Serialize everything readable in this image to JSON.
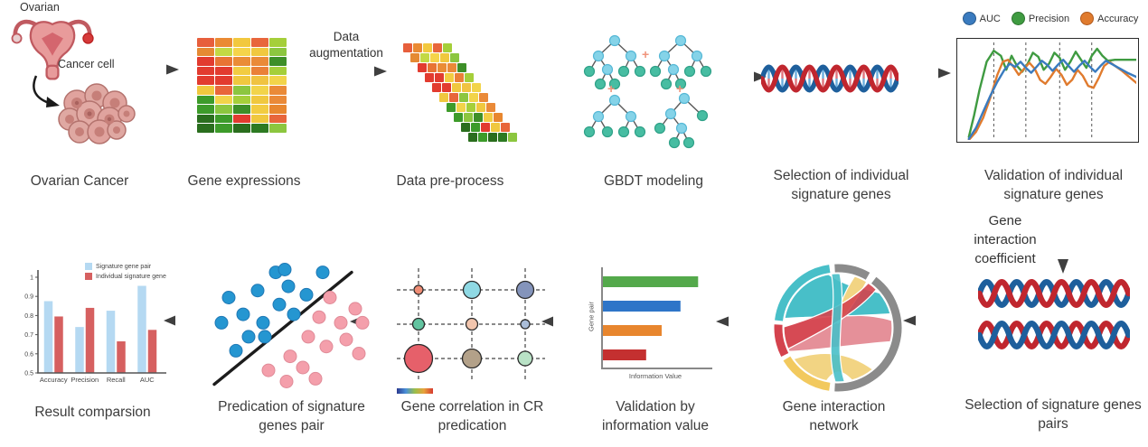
{
  "palette": {
    "arrow": "#3f3f3f",
    "caption_text": "#3c3c3c",
    "dna_blue": "#1e5f9c",
    "dna_red": "#c0262e",
    "tree_node_blue": "#85d3e8",
    "tree_leaf_teal": "#47bda2",
    "plus_salmon": "#f0947c",
    "chord_teal": "#48bfc8",
    "chord_pink": "#e59099",
    "chord_red": "#d4424d",
    "chord_yellow": "#f2d483",
    "chord_gray": "#8b8b8b"
  },
  "icons": [
    "uterus-icon",
    "cancer-cells-icon",
    "right-arrow-icon",
    "left-arrow-icon",
    "down-arrow-icon",
    "curved-arrow-icon",
    "gbdt-tree-icon",
    "plus-icon",
    "dna-helix-icon",
    "chord-diagram-icon",
    "colorbar-icon"
  ],
  "labels": {
    "ovarian": "Ovarian",
    "cancer_cell": "Cancer cell",
    "data_augmentation": "Data augmentation",
    "gene_interaction_coefficient": "Gene interaction coefficient"
  },
  "captions": {
    "ovarian_cancer": "Ovarian Cancer",
    "gene_expressions": "Gene expressions",
    "data_preprocess": "Data pre-process",
    "gbdt_modeling": "GBDT modeling",
    "selection_individual": "Selection of individual signature genes",
    "validation_individual": "Validation of individual signature genes",
    "selection_pairs": "Selection of signature genes pairs",
    "gene_interaction_network": "Gene interaction network",
    "validation_information": "Validation by information value",
    "gene_correlation": "Gene correlation in CR predication",
    "prediction_pairs": "Predication of signature genes pair",
    "result_comparison": "Result comparsion"
  },
  "gbdt": {
    "plus": "+"
  },
  "gene_expression_heatmap": {
    "grid": [
      [
        "#e75f3c",
        "#ea8a33",
        "#f2c83e",
        "#e8663b",
        "#a5cf3a"
      ],
      [
        "#e58a33",
        "#c3d944",
        "#f5d44a",
        "#f0c83f",
        "#8cc63f"
      ],
      [
        "#e23b2f",
        "#e87434",
        "#ea8c36",
        "#ea8a38",
        "#3d8f28"
      ],
      [
        "#e23b2f",
        "#e23b2f",
        "#f2cc42",
        "#ea8038",
        "#a5cf3a"
      ],
      [
        "#e23b2f",
        "#e23b2f",
        "#f0c83f",
        "#f0c341",
        "#f2d44a"
      ],
      [
        "#f0c83f",
        "#e8663b",
        "#8cc63f",
        "#f2d44a",
        "#ea8a38"
      ],
      [
        "#3d9b2a",
        "#f2d44a",
        "#a5cf3a",
        "#f0c83f",
        "#ea8a38"
      ],
      [
        "#3d9b2a",
        "#8cc63f",
        "#3d8f28",
        "#f2cc42",
        "#e8872f"
      ],
      [
        "#2a6e1e",
        "#3d9b2a",
        "#e23b2f",
        "#f0c83f",
        "#e8663b"
      ],
      [
        "#2a6e1e",
        "#3d9b2a",
        "#2a6e1e",
        "#2d7a22",
        "#8cc63f"
      ]
    ]
  },
  "chart_data": {
    "validation": {
      "type": "line",
      "legend": [
        {
          "label": "AUC",
          "color": "#3a7bbf",
          "border": "#2a5a8c"
        },
        {
          "label": "Precision",
          "color": "#3f9b41",
          "border": "#2e7530"
        },
        {
          "label": "Accuracy",
          "color": "#e07b2e",
          "border": "#b05a1e"
        }
      ],
      "vlines_pct": [
        20,
        38,
        57,
        75
      ],
      "series": [
        {
          "name": "Precision",
          "color": "#3f9b41",
          "points": [
            [
              6,
              97
            ],
            [
              9,
              75
            ],
            [
              12,
              50
            ],
            [
              16,
              22
            ],
            [
              20,
              11
            ],
            [
              24,
              16
            ],
            [
              27,
              30
            ],
            [
              30,
              16
            ],
            [
              33,
              26
            ],
            [
              36,
              32
            ],
            [
              39,
              24
            ],
            [
              42,
              13
            ],
            [
              45,
              17
            ],
            [
              48,
              30
            ],
            [
              51,
              24
            ],
            [
              54,
              13
            ],
            [
              57,
              18
            ],
            [
              60,
              30
            ],
            [
              63,
              22
            ],
            [
              66,
              12
            ],
            [
              69,
              20
            ],
            [
              72,
              28
            ],
            [
              75,
              16
            ],
            [
              78,
              9
            ],
            [
              81,
              16
            ],
            [
              84,
              21
            ],
            [
              88,
              20
            ],
            [
              93,
              20
            ],
            [
              100,
              20
            ]
          ]
        },
        {
          "name": "Accuracy",
          "color": "#e07b2e",
          "points": [
            [
              6,
              100
            ],
            [
              10,
              92
            ],
            [
              14,
              78
            ],
            [
              18,
              58
            ],
            [
              22,
              35
            ],
            [
              25,
              22
            ],
            [
              28,
              20
            ],
            [
              31,
              27
            ],
            [
              34,
              35
            ],
            [
              37,
              29
            ],
            [
              40,
              23
            ],
            [
              43,
              29
            ],
            [
              46,
              40
            ],
            [
              49,
              44
            ],
            [
              52,
              37
            ],
            [
              55,
              29
            ],
            [
              58,
              35
            ],
            [
              61,
              45
            ],
            [
              64,
              40
            ],
            [
              67,
              30
            ],
            [
              70,
              36
            ],
            [
              73,
              46
            ],
            [
              76,
              48
            ],
            [
              79,
              38
            ],
            [
              82,
              26
            ],
            [
              85,
              22
            ],
            [
              88,
              26
            ],
            [
              92,
              31
            ],
            [
              100,
              43
            ]
          ]
        },
        {
          "name": "AUC",
          "color": "#3a7bbf",
          "points": [
            [
              6,
              99
            ],
            [
              10,
              88
            ],
            [
              14,
              72
            ],
            [
              18,
              56
            ],
            [
              22,
              42
            ],
            [
              26,
              30
            ],
            [
              29,
              24
            ],
            [
              32,
              27
            ],
            [
              35,
              22
            ],
            [
              38,
              28
            ],
            [
              41,
              33
            ],
            [
              44,
              27
            ],
            [
              47,
              21
            ],
            [
              50,
              25
            ],
            [
              53,
              31
            ],
            [
              56,
              25
            ],
            [
              59,
              20
            ],
            [
              62,
              26
            ],
            [
              65,
              32
            ],
            [
              68,
              26
            ],
            [
              71,
              21
            ],
            [
              74,
              27
            ],
            [
              77,
              32
            ],
            [
              80,
              26
            ],
            [
              83,
              21
            ],
            [
              86,
              24
            ],
            [
              90,
              28
            ],
            [
              95,
              33
            ],
            [
              100,
              37
            ]
          ]
        }
      ]
    },
    "information_value": {
      "type": "bar",
      "orientation": "horizontal",
      "xlabel": "Information Value",
      "ylabel": "Gene pair",
      "bars": [
        {
          "color": "#54a94b",
          "value": 0.92
        },
        {
          "color": "#2e75c8",
          "value": 0.75
        },
        {
          "color": "#e8862e",
          "value": 0.57
        },
        {
          "color": "#c43030",
          "value": 0.42
        }
      ]
    },
    "correlation_bubbles": {
      "type": "bubble",
      "bubbles": [
        {
          "row": 0,
          "col": 0,
          "r": 5,
          "color": "#ef8d75"
        },
        {
          "row": 0,
          "col": 1,
          "r": 9.5,
          "color": "#8fd9e4"
        },
        {
          "row": 0,
          "col": 2,
          "r": 9.5,
          "color": "#8494bb"
        },
        {
          "row": 1,
          "col": 0,
          "r": 6.5,
          "color": "#62c4a0"
        },
        {
          "row": 1,
          "col": 1,
          "r": 6.5,
          "color": "#f2c5ad"
        },
        {
          "row": 1,
          "col": 2,
          "r": 5,
          "color": "#aabdd8"
        },
        {
          "row": 2,
          "col": 0,
          "r": 15.5,
          "color": "#e6606a"
        },
        {
          "row": 2,
          "col": 1,
          "r": 10.5,
          "color": "#b3a189"
        },
        {
          "row": 2,
          "col": 2,
          "r": 8,
          "color": "#b9e2c6"
        }
      ],
      "colorbar": [
        "#2b3a8f",
        "#4a90d9",
        "#9abf4a",
        "#e8a23c",
        "#d63a2f"
      ]
    },
    "scatter": {
      "type": "scatter",
      "line": [
        [
          6,
          92
        ],
        [
          82,
          12
        ]
      ],
      "series": [
        {
          "name": "class-blue",
          "color": "#2596d1",
          "edge": "#1f78b5",
          "points": [
            [
              14,
              30
            ],
            [
              10,
              48
            ],
            [
              22,
              42
            ],
            [
              30,
              25
            ],
            [
              40,
              12
            ],
            [
              25,
              58
            ],
            [
              33,
              48
            ],
            [
              42,
              35
            ],
            [
              47,
              22
            ],
            [
              57,
              28
            ],
            [
              66,
              12
            ],
            [
              18,
              68
            ],
            [
              34,
              58
            ],
            [
              50,
              42
            ],
            [
              45,
              10
            ]
          ]
        },
        {
          "name": "class-pink",
          "color": "#f49fab",
          "edge": "#e08a97",
          "points": [
            [
              48,
              72
            ],
            [
              58,
              58
            ],
            [
              64,
              44
            ],
            [
              70,
              30
            ],
            [
              76,
              48
            ],
            [
              84,
              38
            ],
            [
              55,
              80
            ],
            [
              68,
              65
            ],
            [
              79,
              60
            ],
            [
              88,
              48
            ],
            [
              36,
              82
            ],
            [
              46,
              90
            ],
            [
              62,
              88
            ],
            [
              86,
              70
            ]
          ]
        }
      ]
    },
    "result_comparison": {
      "type": "bar",
      "categories": [
        "Accuracy",
        "Precision",
        "Recall",
        "AUC"
      ],
      "yticks": [
        "1",
        "0.9",
        "0.8",
        "0.7",
        "0.6",
        "0.5"
      ],
      "ylim": [
        0.5,
        1.05
      ],
      "series": [
        {
          "name": "Signature gene pair",
          "color": "#b5d9f2",
          "values": [
            0.875,
            0.74,
            0.825,
            0.955
          ]
        },
        {
          "name": "Individual signature gene",
          "color": "#d66060",
          "values": [
            0.795,
            0.84,
            0.665,
            0.725
          ]
        }
      ]
    }
  }
}
